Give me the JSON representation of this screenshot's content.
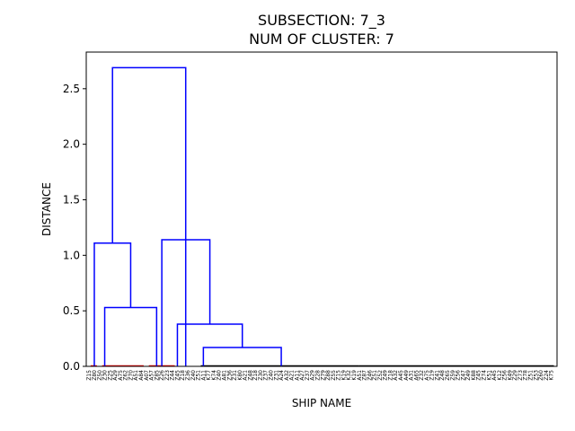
{
  "chart_data": {
    "type": "dendrogram",
    "title": "SUBSECTION: 7_3",
    "subtitle": "NUM OF CLUSTER: 7",
    "xlabel": "SHIP NAME",
    "ylabel": "DISTANCE",
    "ylim": [
      0,
      2.83
    ],
    "yticks": [
      "0.0",
      "0.5",
      "1.0",
      "1.5",
      "2.0",
      "2.5"
    ],
    "ytick_values": [
      0,
      0.5,
      1.0,
      1.5,
      2.0,
      2.5
    ],
    "leaves": [
      "Z15",
      "Z80",
      "Z50",
      "Z30",
      "Z25",
      "A29",
      "A75",
      "Z62",
      "Z70",
      "A51",
      "A84",
      "A07",
      "A57",
      "Z85",
      "Z26",
      "Z23",
      "Z44",
      "Z45",
      "Z18",
      "Z36",
      "Z40",
      "Z51",
      "A11",
      "K77",
      "K74",
      "Z40",
      "A81",
      "Z36",
      "Z31",
      "K80",
      "A21",
      "Z48",
      "Z18",
      "Z30",
      "Z37",
      "Z40",
      "Z31",
      "A24",
      "A32",
      "A21",
      "A11",
      "A27",
      "Z37",
      "A29",
      "Z28",
      "Z79",
      "Z88",
      "Z55",
      "Z15",
      "K19",
      "K32",
      "K19",
      "A51",
      "Z87",
      "Z46",
      "Z51",
      "Z52",
      "Z49",
      "Z18",
      "A32",
      "A45",
      "A49",
      "A31",
      "A65",
      "Z32",
      "A75",
      "Z19",
      "Z41",
      "Z48",
      "Z65",
      "Z59",
      "Z56",
      "Z47",
      "Z49",
      "K88",
      "Z45",
      "Z74",
      "K51",
      "A45",
      "K12",
      "Z56",
      "K49",
      "Z29",
      "Z73",
      "Z78",
      "Z51",
      "Z53",
      "Z60",
      "Z24",
      "K75"
    ],
    "links": [
      {
        "x1": 3,
        "x2": 13,
        "h": 0.53,
        "color": "#0000ff"
      },
      {
        "x1": 1,
        "x2": 8,
        "h": 1.11,
        "color": "#0000ff"
      },
      {
        "x1": 22,
        "x2": 37,
        "h": 0.17,
        "color": "#0000ff"
      },
      {
        "x1": 17,
        "x2": 29.5,
        "h": 0.38,
        "color": "#0000ff"
      },
      {
        "x1": 14,
        "x2": 23.25,
        "h": 1.14,
        "color": "#0000ff"
      },
      {
        "x1": 4.5,
        "x2": 18.6,
        "h": 2.69,
        "color": "#0000ff"
      }
    ],
    "flat_segments": [
      {
        "x1": 0.3,
        "x2": 1.5,
        "color": "#ff0000"
      },
      {
        "x1": 2.5,
        "x2": 10.5,
        "color": "#ff0000"
      },
      {
        "x1": 11.5,
        "x2": 16.5,
        "color": "#ff0000"
      },
      {
        "x1": 21.5,
        "x2": 52,
        "color": "#000000"
      },
      {
        "x1": 52,
        "x2": 89.5,
        "color": "#000000"
      }
    ]
  }
}
